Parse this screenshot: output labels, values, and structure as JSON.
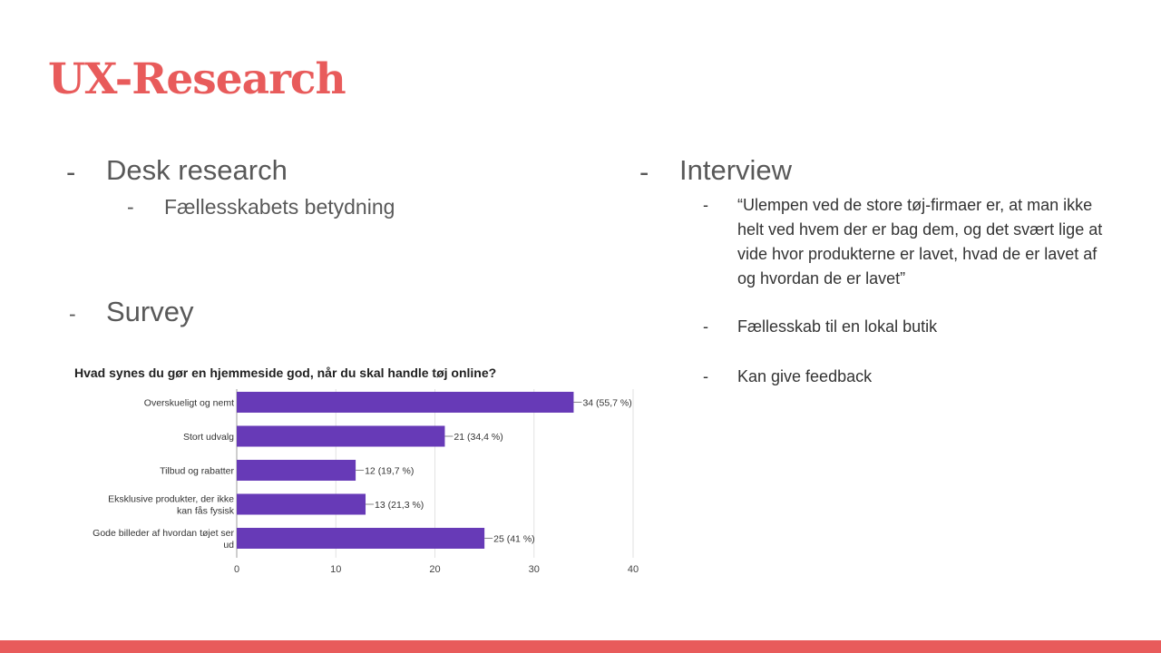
{
  "slide": {
    "title": "UX-Research",
    "accent_color": "#e85b5b",
    "bullet_dash": "-"
  },
  "left": {
    "desk_research": "Desk research",
    "desk_sub": "Fællesskabets betydning",
    "survey": "Survey"
  },
  "right": {
    "interview": "Interview",
    "items": [
      "“Ulempen ved de store tøj-firmaer er, at man ikke helt ved hvem der er bag dem, og det svært lige at vide hvor produkterne er lavet, hvad de er lavet af og hvordan de er lavet”",
      "Fællesskab til en lokal butik",
      "Kan give feedback"
    ]
  },
  "chart_data": {
    "type": "bar",
    "orientation": "horizontal",
    "title": "Hvad synes du gør en hjemmeside god, når du skal handle tøj online?",
    "categories": [
      [
        "Overskueligt og nemt"
      ],
      [
        "Stort udvalg"
      ],
      [
        "Tilbud og rabatter"
      ],
      [
        "Eksklusive produkter, der ikke",
        "kan fås fysisk"
      ],
      [
        "Gode billeder af hvordan tøjet ser",
        "ud"
      ]
    ],
    "values": [
      34,
      21,
      12,
      13,
      25
    ],
    "data_labels": [
      "34 (55,7 %)",
      "21 (34,4 %)",
      "12 (19,7 %)",
      "13 (21,3 %)",
      "25 (41 %)"
    ],
    "xlim": [
      0,
      40
    ],
    "xticks": [
      0,
      10,
      20,
      30,
      40
    ],
    "bar_color": "#673ab7",
    "grid": true
  }
}
